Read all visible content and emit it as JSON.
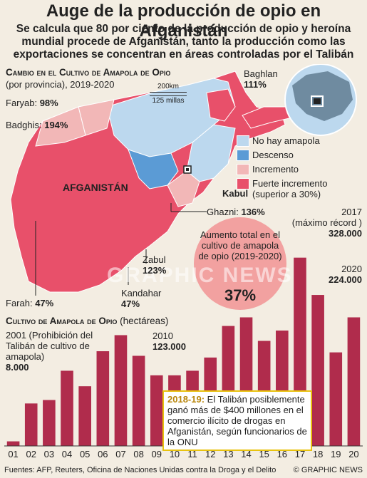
{
  "title": "Auge de la producción de opio en Afganistán",
  "subtitle": "Se calcula que 80 por ciento de la producción de opio y heroína mundial procede de Afganistán, tanto la producción como las exportaciones se concentran en áreas controladas por el Talibán",
  "map_section": {
    "title": "Cambio en el Cultivo de Amapola de Opio",
    "subtitle": "(por provincia), 2019-2020",
    "scale_km": "200km",
    "scale_mi": "125 millas",
    "country_label": "AFGANISTÁN",
    "capital_label": "Kabul",
    "labels": {
      "baghlan": "Baghlan",
      "baghlan_pct": "111%",
      "faryab": "Faryab:",
      "faryab_pct": "98%",
      "badghis": "Badghis:",
      "badghis_pct": "194%",
      "ghazni": "Ghazni:",
      "ghazni_pct": "136%",
      "zabul": "Zabul",
      "zabul_pct": "123%",
      "kandahar": "Kandahar",
      "kandahar_pct": "47%",
      "farah": "Farah:",
      "farah_pct": "47%"
    },
    "legend": [
      {
        "label": "No hay amapola",
        "color": "#bcd8ee"
      },
      {
        "label": "Descenso",
        "color": "#5b9bd5"
      },
      {
        "label": "Incremento",
        "color": "#f2b7b7"
      },
      {
        "label": "Fuerte incremento",
        "color": "#e8506a"
      },
      {
        "label": "(superior a 30%)",
        "color": ""
      }
    ],
    "total_increase_text": "Aumento total en el cultivo de amapola de opio (2019-2020)",
    "total_increase_value": "37%",
    "watermark": "GRAPHIC NEWS"
  },
  "chart_section": {
    "title": "Cultivo de Amapola de Opio",
    "subtitle": "(hectáreas)",
    "ann_2001_line1": "2001 (Prohibición del",
    "ann_2001_line2": "Talibán de cultivo de",
    "ann_2001_line3": "amapola)",
    "ann_2001_value": "8.000",
    "ann_2010_year": "2010",
    "ann_2010_value": "123.000",
    "ann_2017_year": "2017",
    "ann_2017_note": "(máximo récord )",
    "ann_2017_value": "328.000",
    "ann_2020_year": "2020",
    "ann_2020_value": "224.000",
    "callout_year": "2018-19:",
    "callout_text": "El Talibán posiblemente ganó más de $400 millones en el comercio ilícito de drogas en Afganistán, según funcionarios de la ONU"
  },
  "chart_data": {
    "type": "bar",
    "title": "Cultivo de Amapola de Opio",
    "ylabel": "hectáreas",
    "categories": [
      "01",
      "02",
      "03",
      "04",
      "05",
      "06",
      "07",
      "08",
      "09",
      "10",
      "11",
      "12",
      "13",
      "14",
      "15",
      "16",
      "17",
      "18",
      "19",
      "20"
    ],
    "values": [
      8000,
      74000,
      80000,
      131000,
      104000,
      165000,
      193000,
      157000,
      123000,
      123000,
      131000,
      154000,
      209000,
      224000,
      183000,
      201000,
      328000,
      263000,
      163000,
      224000
    ],
    "ylim": [
      0,
      340000
    ],
    "color": "#b02c4c"
  },
  "footer": {
    "sources": "Fuentes: AFP, Reuters, Oficina de Naciones Unidas contra la Droga y el Delito",
    "credit": "© GRAPHIC NEWS"
  },
  "colors": {
    "background": "#f3ede2",
    "no_poppy": "#bcd8ee",
    "decrease": "#5b9bd5",
    "increase": "#f2b7b7",
    "strong_increase": "#e8506a",
    "bar": "#b02c4c",
    "callout_border": "#e8c30f"
  }
}
